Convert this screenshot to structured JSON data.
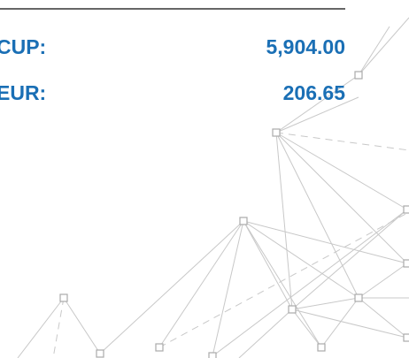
{
  "rows": [
    {
      "label": "CUP:",
      "value": "5,904.00"
    },
    {
      "label": "EUR:",
      "value": "206.65"
    }
  ]
}
